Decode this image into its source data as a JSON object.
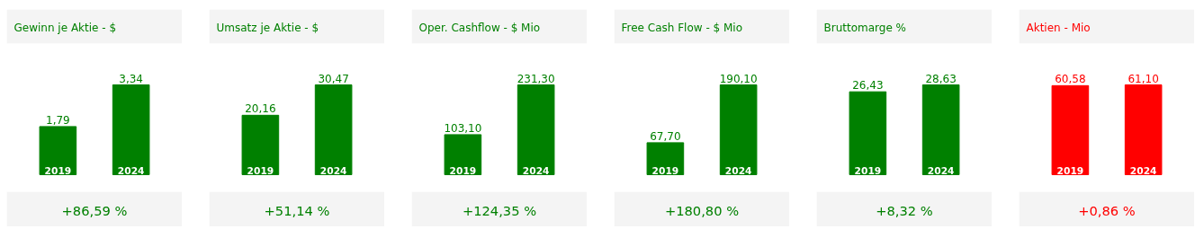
{
  "chart_data": [
    {
      "type": "bar",
      "title": "Gewinn je Aktie - $",
      "categories": [
        "2019",
        "2024"
      ],
      "series": [
        {
          "color": "#008000",
          "values": [
            1.79,
            3.34
          ],
          "value_labels": [
            "1,79",
            "3,34"
          ]
        }
      ],
      "annotations": [
        "+86,59 %"
      ]
    },
    {
      "type": "bar",
      "title": "Umsatz je Aktie - $",
      "categories": [
        "2019",
        "2024"
      ],
      "series": [
        {
          "color": "#008000",
          "values": [
            20.16,
            30.47
          ],
          "value_labels": [
            "20,16",
            "30,47"
          ]
        }
      ],
      "annotations": [
        "+51,14 %"
      ]
    },
    {
      "type": "bar",
      "title": "Oper. Cashflow - $ Mio",
      "categories": [
        "2019",
        "2024"
      ],
      "series": [
        {
          "color": "#008000",
          "values": [
            103.1,
            231.3
          ],
          "value_labels": [
            "103,10",
            "231,30"
          ]
        }
      ],
      "annotations": [
        "+124,35 %"
      ]
    },
    {
      "type": "bar",
      "title": "Free Cash Flow - $ Mio",
      "categories": [
        "2019",
        "2024"
      ],
      "series": [
        {
          "color": "#008000",
          "values": [
            67.7,
            190.1
          ],
          "value_labels": [
            "67,70",
            "190,10"
          ]
        }
      ],
      "annotations": [
        "+180,80 %"
      ]
    },
    {
      "type": "bar",
      "title": "Bruttomarge %",
      "categories": [
        "2019",
        "2024"
      ],
      "series": [
        {
          "color": "#008000",
          "values": [
            26.43,
            28.63
          ],
          "value_labels": [
            "26,43",
            "28,63"
          ]
        }
      ],
      "annotations": [
        "+8,32 %"
      ]
    },
    {
      "type": "bar",
      "title": "Aktien - Mio",
      "categories": [
        "2019",
        "2024"
      ],
      "series": [
        {
          "color": "#ff0000",
          "values": [
            60.58,
            61.1
          ],
          "value_labels": [
            "60,58",
            "61,10"
          ]
        }
      ],
      "annotations": [
        "+0,86 %"
      ]
    }
  ]
}
